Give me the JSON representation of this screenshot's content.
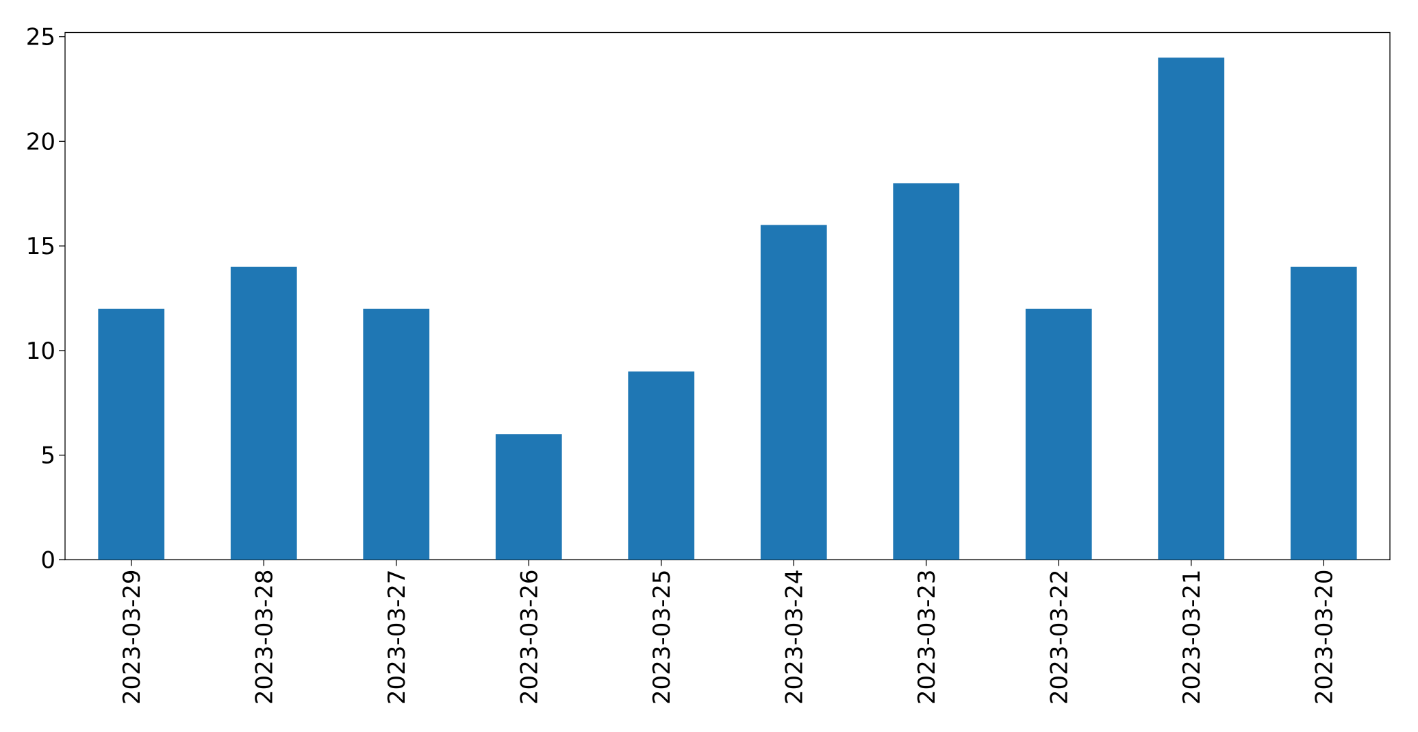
{
  "chart_data": {
    "type": "bar",
    "categories": [
      "2023-03-29",
      "2023-03-28",
      "2023-03-27",
      "2023-03-26",
      "2023-03-25",
      "2023-03-24",
      "2023-03-23",
      "2023-03-22",
      "2023-03-21",
      "2023-03-20"
    ],
    "values": [
      12,
      14,
      12,
      6,
      9,
      16,
      18,
      12,
      24,
      14
    ],
    "color": "#1f77b4",
    "ylim": [
      0,
      25.2
    ],
    "yticks": [
      0,
      5,
      10,
      15,
      20,
      25
    ],
    "grid": false
  }
}
